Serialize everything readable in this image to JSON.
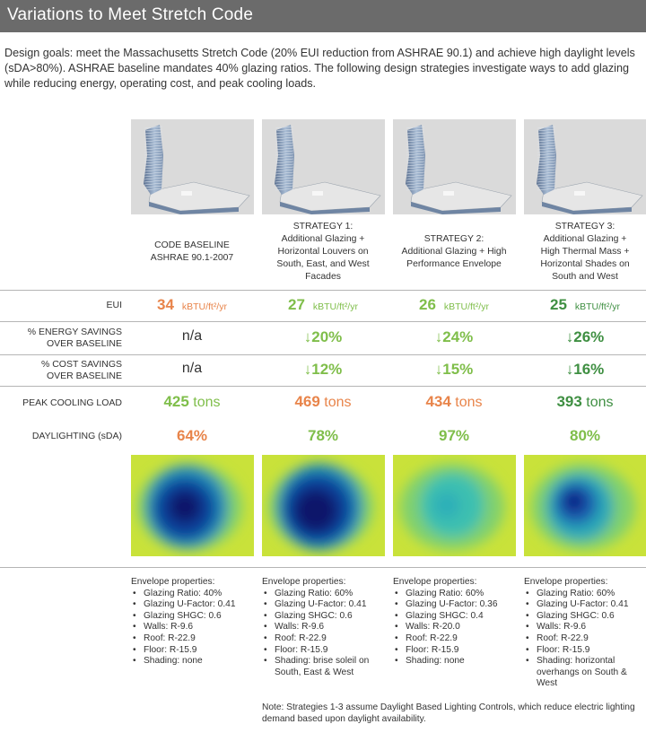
{
  "header": {
    "title": "Variations to Meet Stretch Code"
  },
  "intro": "Design goals: meet the Massachusetts Stretch Code (20% EUI reduction from ASHRAE 90.1) and achieve high daylight levels (sDA>80%). ASHRAE baseline mandates 40% glazing ratios. The following design strategies investigate ways to add glazing while reducing energy, operating cost, and peak cooling loads.",
  "row_labels": {
    "eui": "EUI",
    "energy_line1": "% ENERGY SAVINGS",
    "energy_line2": "OVER BASELINE",
    "cost_line1": "% COST SAVINGS",
    "cost_line2": "OVER BASELINE",
    "cooling": "PEAK COOLING LOAD",
    "daylight": "DAYLIGHTING (sDA)"
  },
  "eui_unit": "kBTU/ft²/yr",
  "tons_unit": "tons",
  "envelope_heading": "Envelope properties:",
  "columns": [
    {
      "title_lines": [
        "CODE BASELINE",
        "ASHRAE 90.1-2007"
      ],
      "eui": "34",
      "eui_color": "#e8844a",
      "energy": "n/a",
      "energy_color": "#333333",
      "cost": "n/a",
      "cost_color": "#333333",
      "cooling": "425",
      "cooling_color": "#7fbe4a",
      "daylight": "64%",
      "daylight_color": "#e8844a",
      "envelope": [
        "Glazing Ratio: 40%",
        "Glazing U-Factor: 0.41",
        "Glazing SHGC: 0.6",
        "Walls: R-9.6",
        "Roof: R-22.9",
        "Floor: R-15.9",
        "Shading: none"
      ]
    },
    {
      "title_lines": [
        "STRATEGY 1:",
        "Additional Glazing +",
        "Horizontal Louvers on",
        "South, East, and West",
        "Facades"
      ],
      "eui": "27",
      "eui_color": "#7fbe4a",
      "energy": "↓20%",
      "energy_color": "#7fbe4a",
      "cost": "↓12%",
      "cost_color": "#7fbe4a",
      "cooling": "469",
      "cooling_color": "#e8844a",
      "daylight": "78%",
      "daylight_color": "#7fbe4a",
      "envelope": [
        "Glazing Ratio: 60%",
        "Glazing U-Factor: 0.41",
        "Glazing SHGC: 0.6",
        "Walls: R-9.6",
        "Roof: R-22.9",
        "Floor: R-15.9",
        "Shading: brise soleil on South, East & West"
      ]
    },
    {
      "title_lines": [
        "STRATEGY 2:",
        "Additional Glazing + High",
        "Performance Envelope"
      ],
      "eui": "26",
      "eui_color": "#7fbe4a",
      "energy": "↓24%",
      "energy_color": "#7fbe4a",
      "cost": "↓15%",
      "cost_color": "#7fbe4a",
      "cooling": "434",
      "cooling_color": "#e8844a",
      "daylight": "97%",
      "daylight_color": "#7fbe4a",
      "envelope": [
        "Glazing Ratio: 60%",
        "Glazing U-Factor: 0.36",
        "Glazing SHGC: 0.4",
        "Walls: R-20.0",
        "Roof: R-22.9",
        "Floor: R-15.9",
        "Shading: none"
      ]
    },
    {
      "title_lines": [
        "STRATEGY 3:",
        "Additional Glazing +",
        "High Thermal Mass +",
        "Horizontal Shades on",
        "South and West"
      ],
      "eui": "25",
      "eui_color": "#3f8f42",
      "energy": "↓26%",
      "energy_color": "#3f8f42",
      "cost": "↓16%",
      "cost_color": "#3f8f42",
      "cooling": "393",
      "cooling_color": "#3f8f42",
      "daylight": "80%",
      "daylight_color": "#7fbe4a",
      "envelope": [
        "Glazing Ratio: 60%",
        "Glazing U-Factor: 0.41",
        "Glazing SHGC: 0.6",
        "Walls: R-9.6",
        "Roof: R-22.9",
        "Floor: R-15.9",
        "Shading: horizontal overhangs on South & West"
      ]
    }
  ],
  "note": "Note: Strategies 1-3 assume Daylight Based Lighting Controls, which reduce electric lighting demand based upon daylight availability."
}
